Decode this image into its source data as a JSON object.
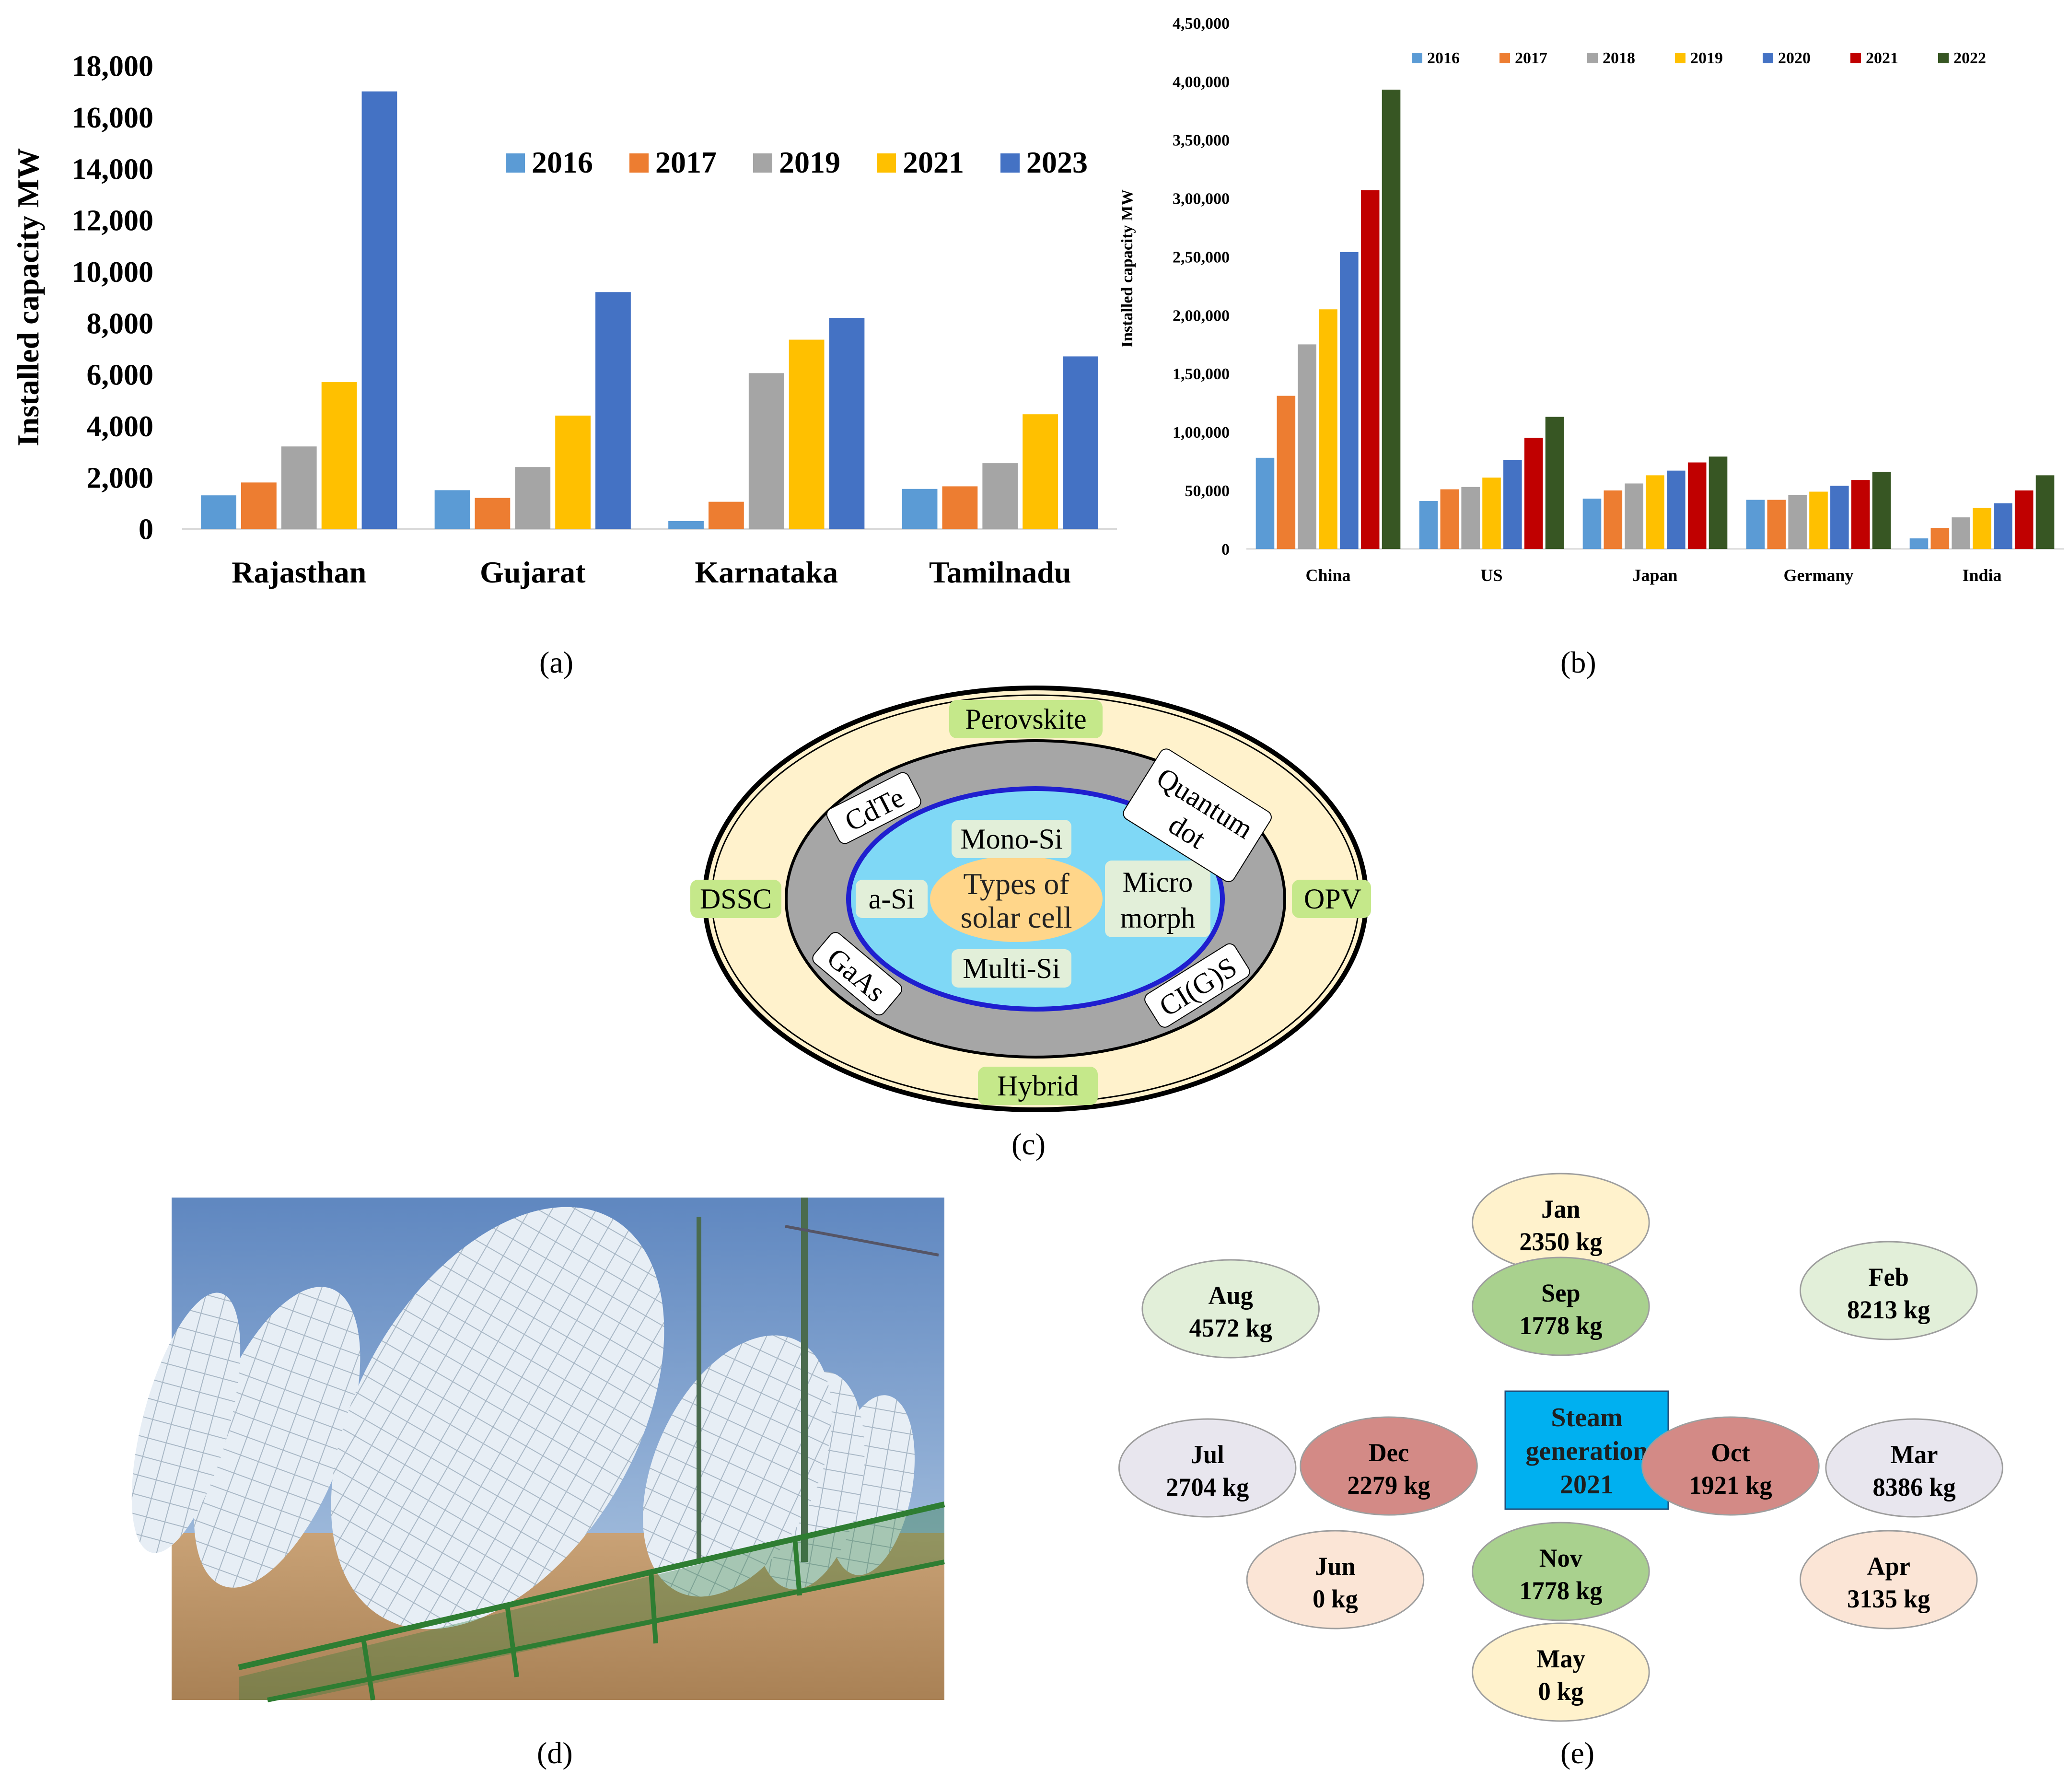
{
  "captions": {
    "a": "(a)",
    "b": "(b)",
    "c": "(c)",
    "d": "(d)",
    "e": "(e)"
  },
  "chart_data": [
    {
      "type": "bar",
      "panel": "a",
      "title": "",
      "xlabel": "",
      "ylabel": "Installed capacity MW",
      "ylim": [
        0,
        18000
      ],
      "yticks": [
        "0",
        "2,000",
        "4,000",
        "6,000",
        "8,000",
        "10,000",
        "12,000",
        "14,000",
        "16,000",
        "18,000"
      ],
      "categories": [
        "Rajasthan",
        "Gujarat",
        "Karnataka",
        "Tamilnadu"
      ],
      "legend_position": "top-right",
      "series": [
        {
          "name": "2016",
          "color": "#5b9bd5",
          "values": [
            1300,
            1500,
            300,
            1550
          ]
        },
        {
          "name": "2017",
          "color": "#ed7d31",
          "values": [
            1800,
            1200,
            1050,
            1650
          ]
        },
        {
          "name": "2019",
          "color": "#a5a5a5",
          "values": [
            3200,
            2400,
            6050,
            2550
          ]
        },
        {
          "name": "2021",
          "color": "#ffc000",
          "values": [
            5700,
            4400,
            7350,
            4450
          ]
        },
        {
          "name": "2023",
          "color": "#4472c4",
          "values": [
            17000,
            9200,
            8200,
            6700
          ]
        }
      ]
    },
    {
      "type": "bar",
      "panel": "b",
      "title": "",
      "xlabel": "",
      "ylabel": "Installed capacity MW",
      "ylim": [
        0,
        450000
      ],
      "yticks": [
        "0",
        "50,000",
        "1,00,000",
        "1,50,000",
        "2,00,000",
        "2,50,000",
        "3,00,000",
        "3,50,000",
        "4,00,000",
        "4,50,000"
      ],
      "categories": [
        "China",
        "US",
        "Japan",
        "Germany",
        "India"
      ],
      "legend_position": "top",
      "series": [
        {
          "name": "2016",
          "color": "#5b9bd5",
          "values": [
            78000,
            41000,
            43000,
            42000,
            9000
          ]
        },
        {
          "name": "2017",
          "color": "#ed7d31",
          "values": [
            131000,
            51000,
            50000,
            42000,
            18000
          ]
        },
        {
          "name": "2018",
          "color": "#a5a5a5",
          "values": [
            175000,
            53000,
            56000,
            46000,
            27000
          ]
        },
        {
          "name": "2019",
          "color": "#ffc000",
          "values": [
            205000,
            61000,
            63000,
            49000,
            35000
          ]
        },
        {
          "name": "2020",
          "color": "#4472c4",
          "values": [
            254000,
            76000,
            67000,
            54000,
            39000
          ]
        },
        {
          "name": "2021",
          "color": "#c00000",
          "values": [
            307000,
            95000,
            74000,
            59000,
            50000
          ]
        },
        {
          "name": "2022",
          "color": "#375623",
          "values": [
            393000,
            113000,
            79000,
            66000,
            63000
          ]
        }
      ]
    }
  ],
  "diagram_c": {
    "center": [
      "Types of",
      "solar cell"
    ],
    "inner": [
      "Mono-Si",
      "Multi-Si",
      "a-Si",
      "Micro",
      "morph"
    ],
    "middle": [
      "CdTe",
      "Quantum",
      "dot",
      "GaAs",
      "CI(G)S"
    ],
    "outer": [
      "Perovskite",
      "DSSC",
      "OPV",
      "Hybrid"
    ]
  },
  "diagram_e": {
    "center": [
      "Steam",
      "generation",
      "2021"
    ],
    "months": [
      {
        "month": "Jan",
        "amount": "2350 kg"
      },
      {
        "month": "Feb",
        "amount": "8213 kg"
      },
      {
        "month": "Mar",
        "amount": "8386 kg"
      },
      {
        "month": "Apr",
        "amount": "3135 kg"
      },
      {
        "month": "May",
        "amount": "0 kg"
      },
      {
        "month": "Jun",
        "amount": "0 kg"
      },
      {
        "month": "Jul",
        "amount": "2704 kg"
      },
      {
        "month": "Aug",
        "amount": "4572 kg"
      },
      {
        "month": "Sep",
        "amount": "1778 kg"
      },
      {
        "month": "Oct",
        "amount": "1921 kg"
      },
      {
        "month": "Nov",
        "amount": "1778 kg"
      },
      {
        "month": "Dec",
        "amount": "2279 kg"
      }
    ]
  }
}
